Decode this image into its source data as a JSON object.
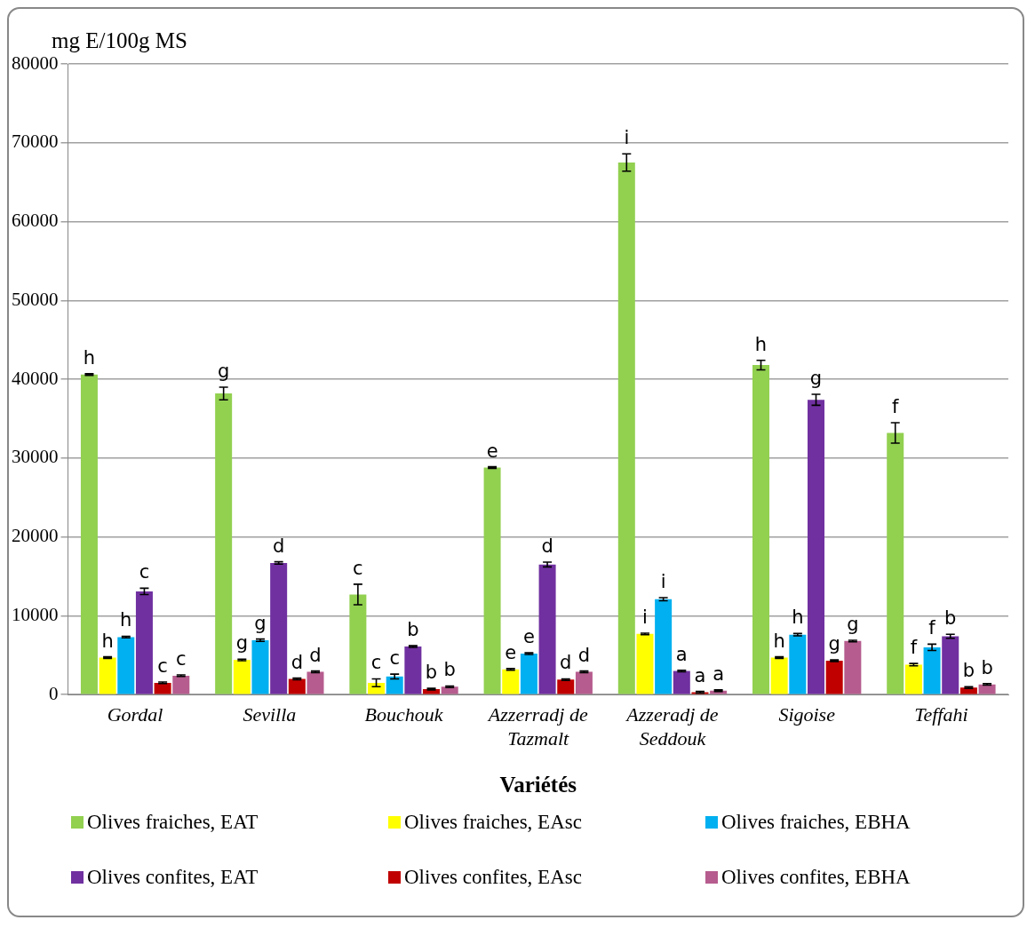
{
  "chart_data": {
    "type": "bar",
    "ylabel": "mg E/100g MS",
    "xlabel": "Variétés",
    "categories": [
      "Gordal",
      "Sevilla",
      "Bouchouk",
      "Azzerradj de Tazmalt",
      "Azzeradj de Seddouk",
      "Sigoise",
      "Teffahi"
    ],
    "ylim": [
      0,
      80000
    ],
    "yticks": [
      0,
      10000,
      20000,
      30000,
      40000,
      50000,
      60000,
      70000,
      80000
    ],
    "grid": "y",
    "legend": "bottom",
    "series": [
      {
        "name": "Olives fraiches, EAT",
        "color": "#92d050",
        "values": [
          40600,
          38200,
          12700,
          28800,
          67500,
          41800,
          33200
        ],
        "errors": [
          100,
          800,
          1300,
          100,
          1100,
          600,
          1300
        ],
        "value_labels": [
          "h",
          "g",
          "c",
          "e",
          "i",
          "h",
          "f"
        ]
      },
      {
        "name": "Olives fraiches, EAsc",
        "color": "#ffff00",
        "values": [
          4700,
          4400,
          1500,
          3200,
          7700,
          4700,
          3800
        ],
        "errors": [
          100,
          100,
          500,
          100,
          100,
          100,
          150
        ],
        "value_labels": [
          "h",
          "g",
          "c",
          "e",
          "i",
          "h",
          "f"
        ]
      },
      {
        "name": "Olives fraiches, EBHA",
        "color": "#00b0f0",
        "values": [
          7300,
          6900,
          2300,
          5200,
          12100,
          7600,
          6000
        ],
        "errors": [
          100,
          150,
          300,
          100,
          200,
          150,
          400
        ],
        "value_labels": [
          "h",
          "g",
          "c",
          "e",
          "i",
          "h",
          "f"
        ]
      },
      {
        "name": "Olives confites, EAT",
        "color": "#7030a0",
        "values": [
          13100,
          16700,
          6100,
          16500,
          3000,
          37400,
          7400
        ],
        "errors": [
          400,
          150,
          100,
          300,
          100,
          700,
          250
        ],
        "value_labels": [
          "c",
          "d",
          "b",
          "d",
          "a",
          "g",
          "b"
        ]
      },
      {
        "name": "Olives confites, EAsc",
        "color": "#c00000",
        "values": [
          1500,
          2000,
          700,
          1900,
          300,
          4300,
          900
        ],
        "errors": [
          100,
          100,
          100,
          100,
          100,
          100,
          100
        ],
        "value_labels": [
          "c",
          "d",
          "b",
          "d",
          "a",
          "g",
          "b"
        ]
      },
      {
        "name": "Olives confites, EBHA",
        "color": "#b65c8e",
        "values": [
          2400,
          2900,
          1000,
          2900,
          500,
          6800,
          1300
        ],
        "errors": [
          100,
          100,
          100,
          100,
          100,
          100,
          100
        ],
        "value_labels": [
          "c",
          "d",
          "b",
          "d",
          "a",
          "g",
          "b"
        ]
      }
    ]
  }
}
